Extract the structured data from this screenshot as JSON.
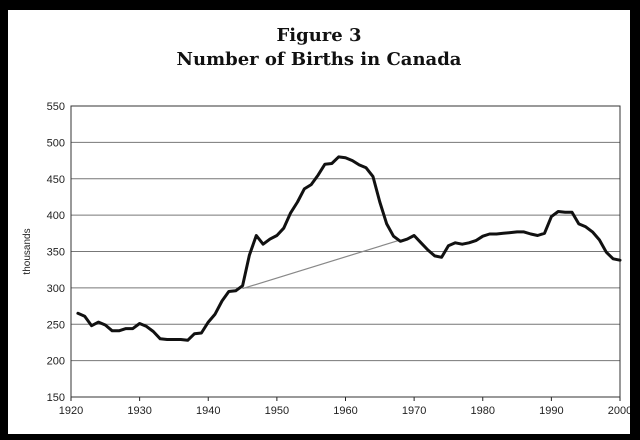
{
  "chart_data": {
    "type": "line",
    "title": "Figure 3",
    "subtitle": "Number of Births in Canada",
    "xlabel": "",
    "ylabel": "thousands",
    "xlim": [
      1920,
      2000
    ],
    "ylim": [
      150,
      550
    ],
    "x_ticks": [
      1920,
      1930,
      1940,
      1950,
      1960,
      1970,
      1980,
      1990,
      2000
    ],
    "y_ticks": [
      150,
      200,
      250,
      300,
      350,
      400,
      450,
      500,
      550
    ],
    "grid": "horizontal",
    "colors": {
      "line": "#111111",
      "trend": "#888888",
      "grid": "#777777"
    },
    "series": [
      {
        "x": [
          1921,
          1922,
          1923,
          1924,
          1925,
          1926,
          1927,
          1928,
          1929,
          1930,
          1931,
          1932,
          1933,
          1934,
          1935,
          1936,
          1937,
          1938,
          1939,
          1940,
          1941,
          1942,
          1943,
          1944,
          1945,
          1946,
          1947,
          1948,
          1949,
          1950,
          1951,
          1952,
          1953,
          1954,
          1955,
          1956,
          1957,
          1958,
          1959,
          1960,
          1961,
          1962,
          1963,
          1964,
          1965,
          1966,
          1967,
          1968,
          1969,
          1970,
          1971,
          1972,
          1973,
          1974,
          1975,
          1976,
          1977,
          1978,
          1979,
          1980,
          1981,
          1982,
          1983,
          1984,
          1985,
          1986,
          1987,
          1988,
          1989,
          1990,
          1991,
          1992,
          1993,
          1994,
          1995,
          1996,
          1997,
          1998,
          1999,
          2000
        ],
        "y": [
          265,
          261,
          248,
          253,
          249,
          241,
          241,
          244,
          244,
          251,
          247,
          240,
          230,
          229,
          229,
          229,
          228,
          237,
          238,
          253,
          264,
          282,
          295,
          296,
          303,
          345,
          372,
          360,
          367,
          372,
          382,
          403,
          418,
          436,
          442,
          455,
          470,
          471,
          480,
          479,
          475,
          469,
          465,
          453,
          418,
          388,
          371,
          364,
          367,
          372,
          362,
          352,
          344,
          342,
          358,
          362,
          360,
          362,
          365,
          371,
          374,
          374,
          375,
          376,
          377,
          377,
          374,
          372,
          375,
          398,
          405,
          404,
          404,
          388,
          384,
          377,
          366,
          349,
          340,
          338
        ]
      },
      {
        "x": [
          1945,
          1968
        ],
        "y": [
          299,
          366
        ]
      }
    ]
  }
}
